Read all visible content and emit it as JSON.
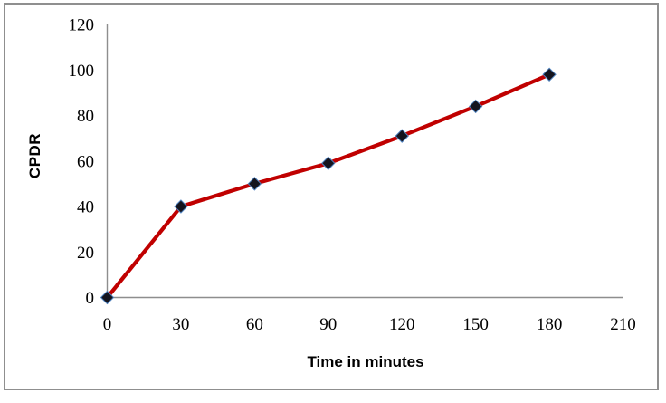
{
  "chart_data": {
    "type": "line",
    "title": "",
    "xlabel": "Time in minutes",
    "ylabel": "CPDR",
    "x": [
      0,
      30,
      60,
      90,
      120,
      150,
      180
    ],
    "series": [
      {
        "name": "CPDR",
        "values": [
          0,
          40,
          50,
          59,
          71,
          84,
          98
        ]
      }
    ],
    "xlim": [
      0,
      210
    ],
    "ylim": [
      0,
      120
    ],
    "x_ticks": [
      0,
      30,
      60,
      90,
      120,
      150,
      180,
      210
    ],
    "y_ticks": [
      0,
      20,
      40,
      60,
      80,
      100,
      120
    ],
    "grid": false,
    "legend": "none",
    "marker": "diamond",
    "colors": {
      "line": "#C00000",
      "marker_fill": "#14141E",
      "marker_stroke": "#4F81BD",
      "axis": "#8E8E8E",
      "tick_text": "#000000",
      "frame_border": "#8F8F8F",
      "background": "#FFFFFF"
    }
  }
}
